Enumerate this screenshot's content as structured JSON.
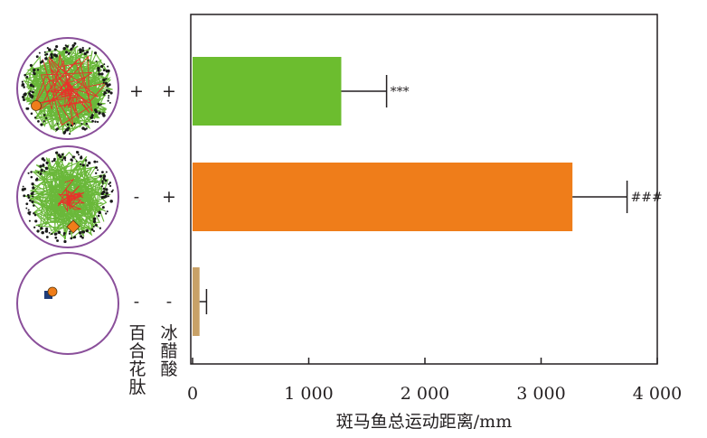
{
  "chart_data": {
    "type": "bar",
    "orientation": "horizontal",
    "title": "",
    "xlabel": "斑马鱼总运动距离/mm",
    "ylabel": "",
    "xlim": [
      0,
      4000
    ],
    "xticks": [
      0,
      1000,
      2000,
      3000,
      4000
    ],
    "xtick_labels": [
      "0",
      "1 000",
      "2 000",
      "3 000",
      "4 000"
    ],
    "grid": false,
    "legend": "none",
    "factor_headers": [
      "百合花肽",
      "冰醋酸"
    ],
    "categories": [
      {
        "lily_peptide": "+",
        "acetic_acid": "+",
        "value": 1280,
        "error": 390,
        "annotation": "***",
        "color": "#6cbd2f"
      },
      {
        "lily_peptide": "-",
        "acetic_acid": "+",
        "value": 3270,
        "error": 470,
        "annotation": "###",
        "color": "#ef7d1a"
      },
      {
        "lily_peptide": "-",
        "acetic_acid": "-",
        "value": 60,
        "error": 60,
        "annotation": "",
        "color": "#c8a167"
      }
    ]
  },
  "colors": {
    "arena_border": "#8a4f9a",
    "track_green": "#6ab83a",
    "track_red": "#e8322a",
    "track_dark": "#1a1a1a",
    "fish_marker": "#ef7d1a",
    "start_marker": "#1f3d7a"
  }
}
